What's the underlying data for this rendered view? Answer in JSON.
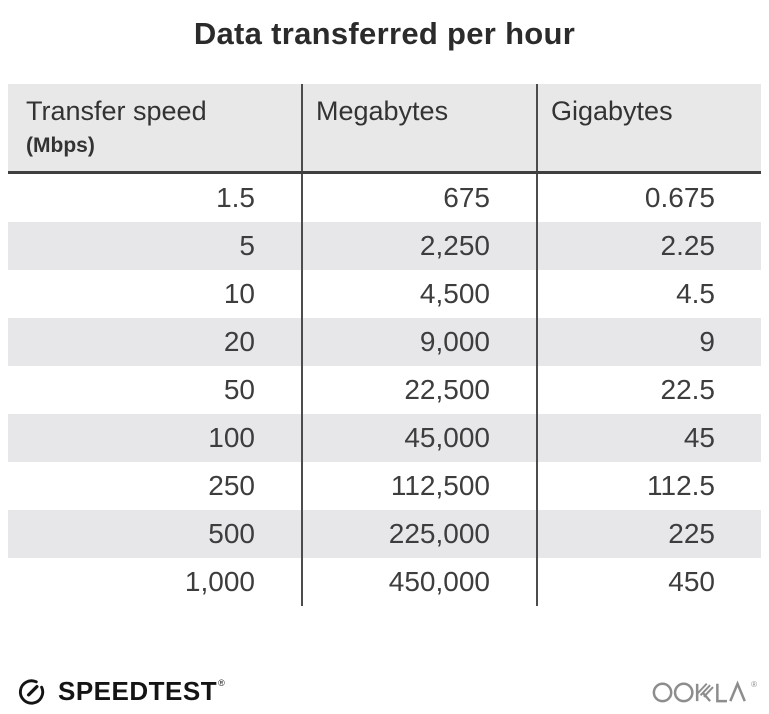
{
  "title": "Data transferred per hour",
  "table": {
    "columns": [
      {
        "label": "Transfer speed",
        "sublabel": "(Mbps)"
      },
      {
        "label": "Megabytes",
        "sublabel": ""
      },
      {
        "label": "Gigabytes",
        "sublabel": ""
      }
    ],
    "rows": [
      [
        "1.5",
        "675",
        "0.675"
      ],
      [
        "5",
        "2,250",
        "2.25"
      ],
      [
        "10",
        "4,500",
        "4.5"
      ],
      [
        "20",
        "9,000",
        "9"
      ],
      [
        "50",
        "22,500",
        "22.5"
      ],
      [
        "100",
        "45,000",
        "45"
      ],
      [
        "250",
        "112,500",
        "112.5"
      ],
      [
        "500",
        "225,000",
        "225"
      ],
      [
        "1,000",
        "450,000",
        "450"
      ]
    ]
  },
  "chart_data": {
    "type": "table",
    "title": "Data transferred per hour",
    "columns": [
      "Transfer speed (Mbps)",
      "Megabytes",
      "Gigabytes"
    ],
    "rows": [
      [
        1.5,
        675,
        0.675
      ],
      [
        5,
        2250,
        2.25
      ],
      [
        10,
        4500,
        4.5
      ],
      [
        20,
        9000,
        9
      ],
      [
        50,
        22500,
        22.5
      ],
      [
        100,
        45000,
        45
      ],
      [
        250,
        112500,
        112.5
      ],
      [
        500,
        225000,
        225
      ],
      [
        1000,
        450000,
        450
      ]
    ]
  },
  "footer": {
    "speedtest_label": "SPEEDTEST",
    "speedtest_trademark": "®",
    "ookla_label": "OOKLA",
    "ookla_trademark": "®"
  },
  "colors": {
    "header_bg": "#e8e8e8",
    "alt_row_bg": "#e7e7e9",
    "divider": "#4c4c4c",
    "title_text": "#2b2b2b",
    "body_text": "#3d3d3d",
    "speedtest_black": "#141414",
    "ookla_gray": "#8d8d8d"
  }
}
